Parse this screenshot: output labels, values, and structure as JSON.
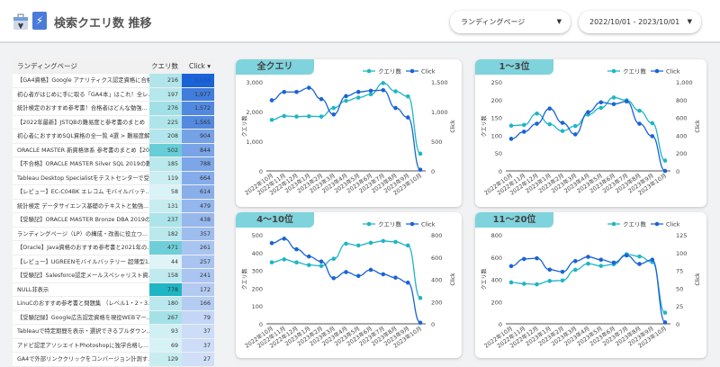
{
  "header": {
    "title": "検索クエリ数 推移",
    "dimension_select": "ランディングページ",
    "date_range": "2022/10/01 - 2023/10/01"
  },
  "table": {
    "headers": [
      "ランディングページ",
      "クエリ数",
      "Click ▾"
    ],
    "rows": [
      [
        "【GA4資格】Google アナリティクス認定資格に合格",
        "216",
        "3,038"
      ],
      [
        "初心者がはじめに手に取る「GA4本」はこれ！全レ...",
        "197",
        "1,977"
      ],
      [
        "統計検定のおすすめ参考書！合格者はどんな勉強...",
        "276",
        "1,572"
      ],
      [
        "【2022年最新】JSTQBの難易度と参考書のまとめ",
        "225",
        "1,565"
      ],
      [
        "初心者におすすめSQL資格の全一覧 4選 > 難易度解説",
        "208",
        "904"
      ],
      [
        "ORACLE MASTER 新資格体系 参考書のまとめ【20...",
        "502",
        "844"
      ],
      [
        "【不合格】ORACLE MASTER Silver SQL 2019の難...",
        "185",
        "788"
      ],
      [
        "Tableau Desktop Specialistをテストセンターで受...",
        "119",
        "664"
      ],
      [
        "【レビュー】EC-C04BK エレコム モバイルバッテ...",
        "58",
        "614"
      ],
      [
        "統計検定 データサイエンス基礎のテキストと勉強...",
        "131",
        "479"
      ],
      [
        "【受験記】ORACLE MASTER Bronze DBA 2019の難...",
        "237",
        "438"
      ],
      [
        "ランディングページ（LP）の構成・改善に役立つ...",
        "182",
        "357"
      ],
      [
        "【Oracle】Java資格のおすすめ参考書と2021年の...",
        "471",
        "261"
      ],
      [
        "【レビュー】UGREENモバイルバッテリー 超薄型1...",
        "44",
        "257"
      ],
      [
        "【受験記】Salesforce認定メールスペシャリスト資...",
        "158",
        "241"
      ],
      [
        "NULL非表示",
        "778",
        "172"
      ],
      [
        "LinuCのおすすめ参考書と問題集 （レベル1・2・3...",
        "180",
        "166"
      ],
      [
        "【受験記録】Google広告認定資格を現役WEBマー...",
        "267",
        "79"
      ],
      [
        "Tableauで特定期間を表示・選択できるプルダウン...",
        "93",
        "37"
      ],
      [
        "アドビ認定アソシエイトPhotoshopに独学合格し...",
        "69",
        "37"
      ],
      [
        "GA4で外部リンククリックをコンバージョン計測す...",
        "129",
        "27"
      ]
    ]
  },
  "colors": {
    "query": "#1fb5c4",
    "click": "#1a63d6",
    "tag": "#7fd3dd"
  },
  "chart_data": [
    {
      "type": "line",
      "title": "全クエリ",
      "categories": [
        "2022年10月",
        "2022年11月",
        "2022年12月",
        "2023年1月",
        "2023年2月",
        "2023年3月",
        "2023年4月",
        "2023年5月",
        "2023年6月",
        "2023年7月",
        "2023年8月",
        "2023年9月",
        "2023年10月"
      ],
      "ylabel": "クエリ数",
      "y2label": "Click",
      "ylim": [
        0,
        3000
      ],
      "y2lim": [
        0,
        1500
      ],
      "yticks": [
        "0",
        "1,000",
        "2,000",
        "3,000"
      ],
      "y2ticks": [
        "0",
        "500",
        "1,000",
        "1,500"
      ],
      "series": [
        {
          "name": "クエリ数",
          "axis": "left",
          "values": [
            1720,
            1850,
            1830,
            1840,
            1830,
            2120,
            2360,
            2470,
            2580,
            2960,
            2680,
            2510,
            580
          ]
        },
        {
          "name": "Click",
          "axis": "right",
          "values": [
            1190,
            1330,
            1330,
            1400,
            1210,
            950,
            1260,
            1330,
            1350,
            1360,
            1060,
            900,
            20
          ]
        }
      ]
    },
    {
      "type": "line",
      "title": "1～3位",
      "categories": [
        "2022年10月",
        "2022年11月",
        "2022年12月",
        "2023年1月",
        "2023年2月",
        "2023年3月",
        "2023年4月",
        "2023年5月",
        "2023年6月",
        "2023年7月",
        "2023年8月",
        "2023年9月",
        "2023年10月"
      ],
      "ylabel": "クエリ数",
      "y2label": "Click",
      "ylim": [
        0,
        250
      ],
      "y2lim": [
        0,
        1000
      ],
      "yticks": [
        "0",
        "50",
        "100",
        "150",
        "200",
        "250"
      ],
      "y2ticks": [
        "0",
        "200",
        "400",
        "600",
        "800",
        "1,000"
      ],
      "series": [
        {
          "name": "クエリ数",
          "axis": "left",
          "values": [
            127,
            129,
            161,
            131,
            112,
            126,
            158,
            177,
            206,
            198,
            169,
            134,
            29
          ]
        },
        {
          "name": "Click",
          "axis": "right",
          "values": [
            360,
            440,
            530,
            700,
            540,
            410,
            660,
            770,
            750,
            780,
            530,
            390,
            0
          ]
        }
      ]
    },
    {
      "type": "line",
      "title": "4～10位",
      "categories": [
        "2022年10月",
        "2022年11月",
        "2022年12月",
        "2023年1月",
        "2023年2月",
        "2023年3月",
        "2023年4月",
        "2023年5月",
        "2023年6月",
        "2023年7月",
        "2023年8月",
        "2023年9月",
        "2023年10月"
      ],
      "ylabel": "クエリ数",
      "y2label": "Click",
      "ylim": [
        0,
        500
      ],
      "y2lim": [
        0,
        800
      ],
      "yticks": [
        "0",
        "100",
        "200",
        "300",
        "400",
        "500"
      ],
      "y2ticks": [
        "0",
        "200",
        "400",
        "600",
        "800"
      ],
      "series": [
        {
          "name": "クエリ数",
          "axis": "left",
          "values": [
            345,
            362,
            345,
            330,
            325,
            365,
            450,
            440,
            455,
            465,
            460,
            440,
            145
          ]
        },
        {
          "name": "Click",
          "axis": "right",
          "values": [
            725,
            765,
            670,
            605,
            560,
            410,
            465,
            430,
            485,
            445,
            415,
            370,
            10
          ]
        }
      ]
    },
    {
      "type": "line",
      "title": "11～20位",
      "categories": [
        "2022年10月",
        "2022年11月",
        "2022年12月",
        "2023年1月",
        "2023年2月",
        "2023年3月",
        "2023年4月",
        "2023年5月",
        "2023年6月",
        "2023年7月",
        "2023年8月",
        "2023年9月",
        "2023年10月"
      ],
      "ylabel": "クエリ数",
      "y2label": "Click",
      "ylim": [
        0,
        800
      ],
      "y2lim": [
        0,
        125
      ],
      "yticks": [
        "0",
        "200",
        "400",
        "600",
        "800"
      ],
      "y2ticks": [
        "0",
        "25",
        "50",
        "75",
        "100",
        "125"
      ],
      "series": [
        {
          "name": "クエリ数",
          "axis": "left",
          "values": [
            372,
            360,
            355,
            385,
            390,
            485,
            540,
            520,
            535,
            625,
            605,
            555,
            100
          ]
        },
        {
          "name": "Click",
          "axis": "right",
          "values": [
            81,
            91,
            92,
            76,
            73,
            88,
            94,
            90,
            86,
            96,
            84,
            90,
            2
          ]
        }
      ]
    }
  ]
}
